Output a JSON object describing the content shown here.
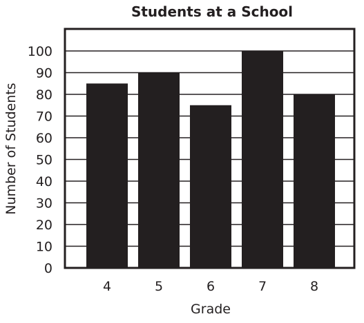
{
  "chart_data": {
    "type": "bar",
    "title": "Students at a School",
    "xlabel": "Grade",
    "ylabel": "Number of Students",
    "categories": [
      "4",
      "5",
      "6",
      "7",
      "8"
    ],
    "values": [
      85,
      90,
      75,
      100,
      80
    ],
    "ylim": [
      0,
      110
    ],
    "yticks": [
      0,
      10,
      20,
      30,
      40,
      50,
      60,
      70,
      80,
      90,
      100
    ],
    "grid": true,
    "bar_color": "#231f20",
    "grid_color": "#231f20"
  }
}
